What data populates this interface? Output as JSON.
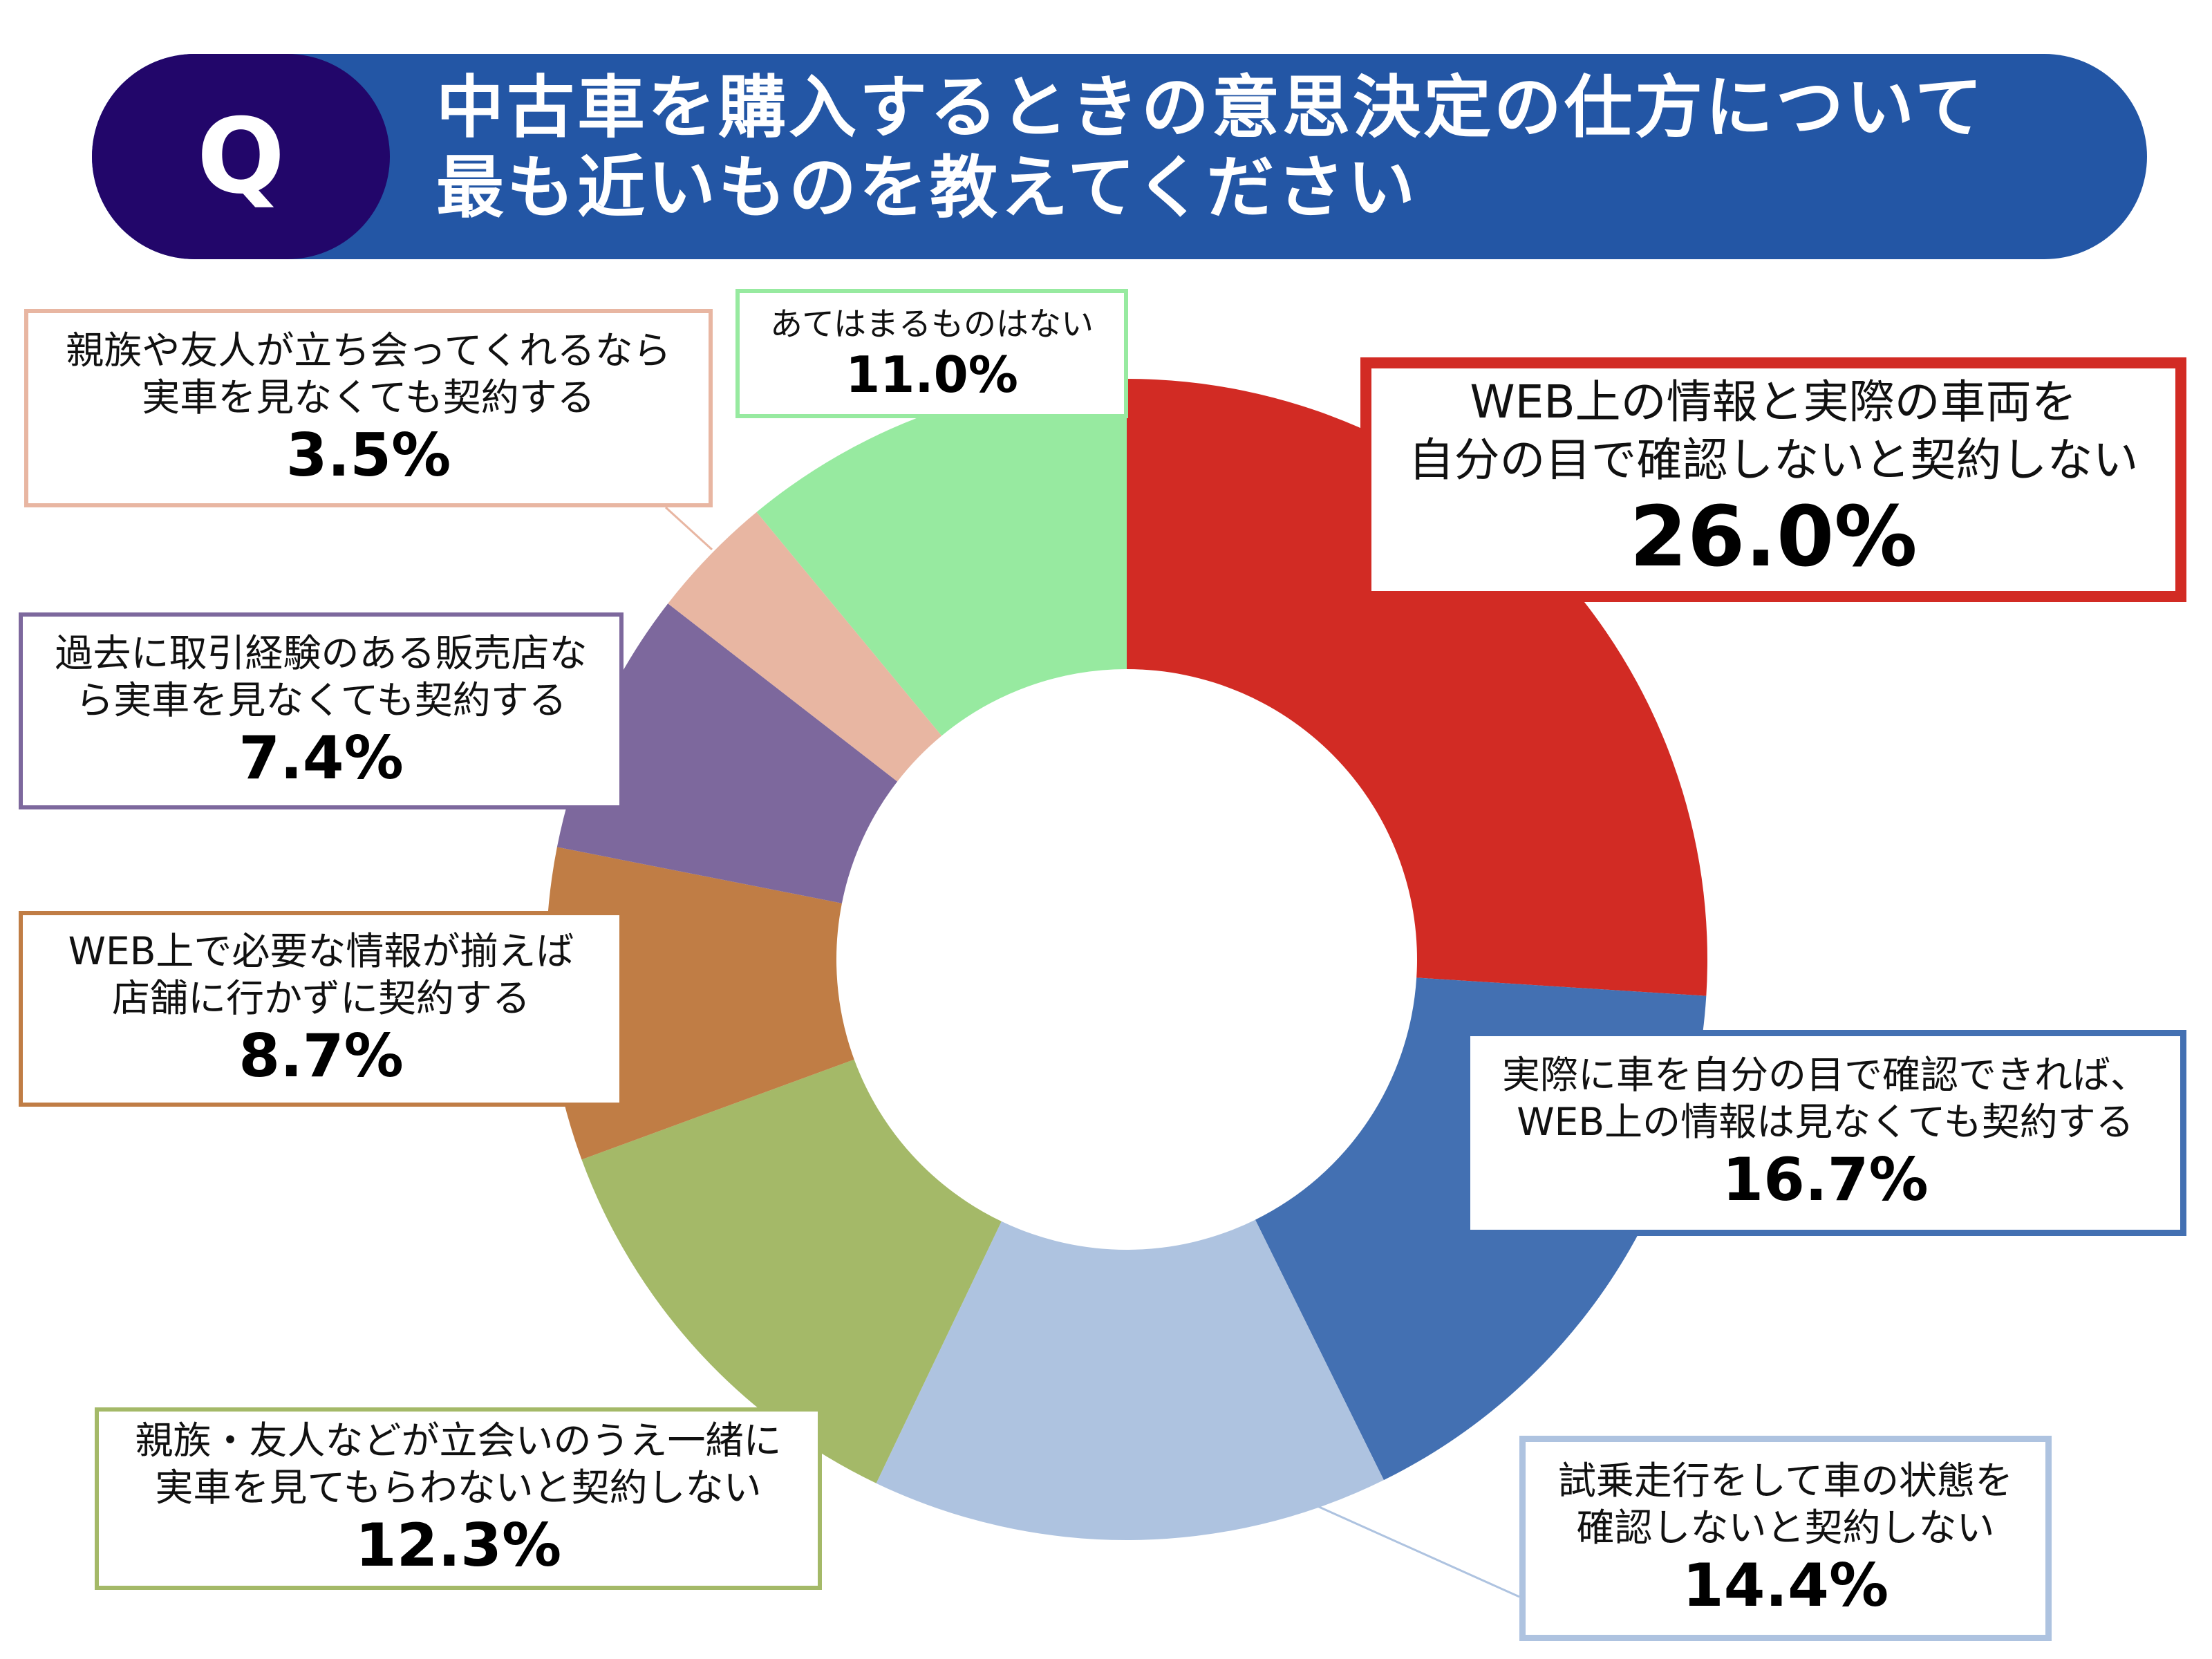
{
  "header": {
    "q_label": "Q",
    "title_line1": "中古車を購入するときの意思決定の仕方について",
    "title_line2": "最も近いものを教えてください",
    "bar_color": "#2356A5",
    "q_color": "#22066A"
  },
  "chart_data": {
    "type": "pie",
    "variant": "donut",
    "start": "12 o'clock, clockwise",
    "unit": "%",
    "slices": [
      {
        "label": "WEB上の情報と実際の車両を\n自分の目で確認しないと契約しない",
        "value": 26.0,
        "value_label": "26.0%",
        "color": "#D22B24"
      },
      {
        "label": "実際に車を自分の目で確認できれば、\nWEB上の情報は見なくても契約する",
        "value": 16.7,
        "value_label": "16.7%",
        "color": "#4370B2"
      },
      {
        "label": "試乗走行をして車の状態を\n確認しないと契約しない",
        "value": 14.4,
        "value_label": "14.4%",
        "color": "#AEC3E0"
      },
      {
        "label": "親族・友人などが立会いのうえ一緒に\n実車を見てもらわないと契約しない",
        "value": 12.3,
        "value_label": "12.3%",
        "color": "#A4B968"
      },
      {
        "label": "WEB上で必要な情報が揃えば\n店舗に行かずに契約する",
        "value": 8.7,
        "value_label": "8.7%",
        "color": "#C07D45"
      },
      {
        "label": "過去に取引経験のある販売店な\nら実車を見なくても契約する",
        "value": 7.4,
        "value_label": "7.4%",
        "color": "#7D689D"
      },
      {
        "label": "親族や友人が立ち会ってくれるなら\n実車を見なくても契約する",
        "value": 3.5,
        "value_label": "3.5%",
        "color": "#E8B6A2"
      },
      {
        "label": "あてはまるものはない",
        "value": 11.0,
        "value_label": "11.0%",
        "color": "#97EAA0"
      }
    ]
  }
}
